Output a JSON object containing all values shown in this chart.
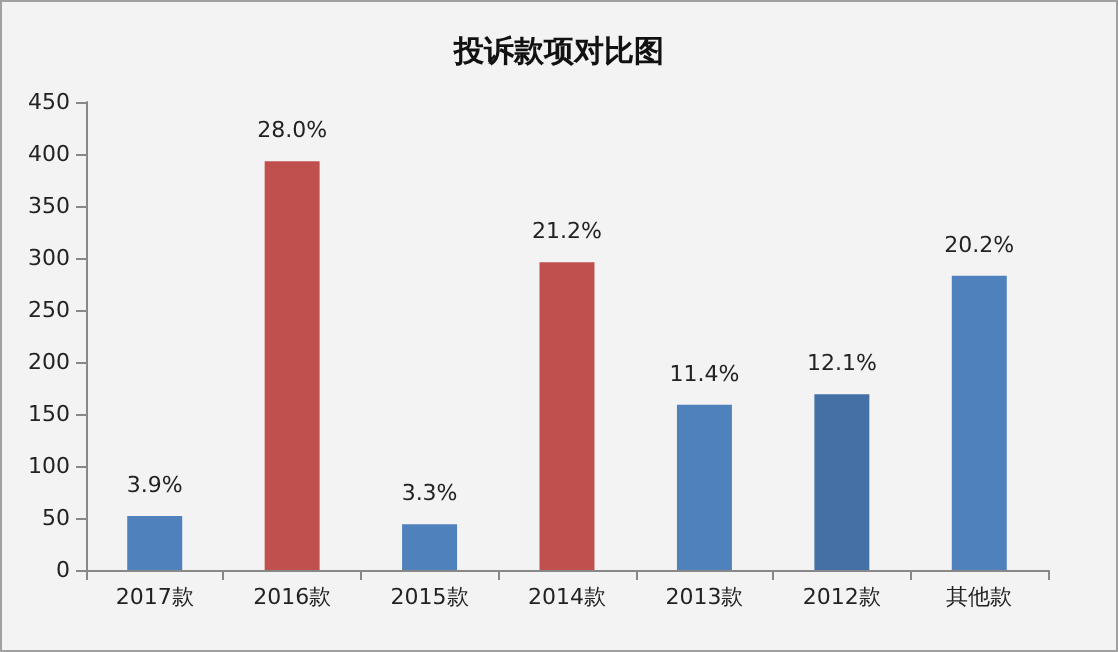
{
  "chart_data": {
    "type": "bar",
    "title": "投诉款项对比图",
    "categories": [
      "2017款",
      "2016款",
      "2015款",
      "2014款",
      "2013款",
      "2012款",
      "其他款"
    ],
    "values": [
      52,
      393,
      44,
      296,
      159,
      169,
      283
    ],
    "colors": [
      "#4f81bd",
      "#c0504d",
      "#4f81bd",
      "#c0504d",
      "#4f81bd",
      "#4470a6",
      "#4f81bd"
    ],
    "annotations": [
      {
        "text": "3.9%",
        "x": "2017款",
        "y": 52
      },
      {
        "text": "28.0%",
        "x": "2016款",
        "y": 393
      },
      {
        "text": "3.3%",
        "x": "2015款",
        "y": 44
      },
      {
        "text": "21.2%",
        "x": "2014款",
        "y": 296
      },
      {
        "text": "11.4%",
        "x": "2013款",
        "y": 159
      },
      {
        "text": "12.1%",
        "x": "2012款",
        "y": 169
      },
      {
        "text": "20.2%",
        "x": "其他款",
        "y": 283
      }
    ],
    "ylim": [
      0,
      450
    ],
    "yticks": [
      0,
      50,
      100,
      150,
      200,
      250,
      300,
      350,
      400,
      450
    ],
    "grid": false
  }
}
